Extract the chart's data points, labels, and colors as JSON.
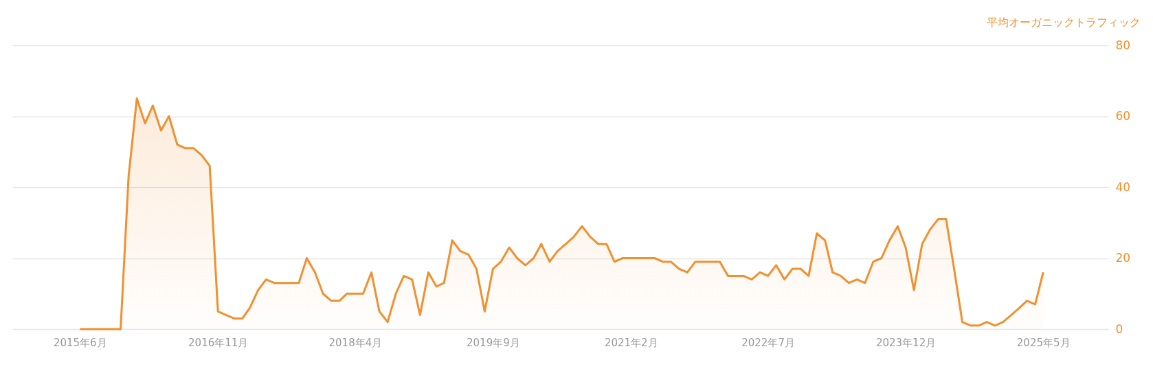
{
  "chart_data": {
    "type": "area",
    "ylabel": "平均オーガニックトラフィック",
    "x": [
      "2015-06",
      "2015-07",
      "2015-08",
      "2015-09",
      "2015-10",
      "2015-11",
      "2015-12",
      "2016-01",
      "2016-02",
      "2016-03",
      "2016-04",
      "2016-05",
      "2016-06",
      "2016-07",
      "2016-08",
      "2016-09",
      "2016-10",
      "2016-11",
      "2016-12",
      "2017-01",
      "2017-02",
      "2017-03",
      "2017-04",
      "2017-05",
      "2017-06",
      "2017-07",
      "2017-08",
      "2017-09",
      "2017-10",
      "2017-11",
      "2017-12",
      "2018-01",
      "2018-02",
      "2018-03",
      "2018-04",
      "2018-05",
      "2018-06",
      "2018-07",
      "2018-08",
      "2018-09",
      "2018-10",
      "2018-11",
      "2018-12",
      "2019-01",
      "2019-02",
      "2019-03",
      "2019-04",
      "2019-05",
      "2019-06",
      "2019-07",
      "2019-08",
      "2019-09",
      "2019-10",
      "2019-11",
      "2019-12",
      "2020-01",
      "2020-02",
      "2020-03",
      "2020-04",
      "2020-05",
      "2020-06",
      "2020-07",
      "2020-08",
      "2020-09",
      "2020-10",
      "2020-11",
      "2020-12",
      "2021-01",
      "2021-02",
      "2021-03",
      "2021-04",
      "2021-05",
      "2021-06",
      "2021-07",
      "2021-08",
      "2021-09",
      "2021-10",
      "2021-11",
      "2021-12",
      "2022-01",
      "2022-02",
      "2022-03",
      "2022-04",
      "2022-05",
      "2022-06",
      "2022-07",
      "2022-08",
      "2022-09",
      "2022-10",
      "2022-11",
      "2022-12",
      "2023-01",
      "2023-02",
      "2023-03",
      "2023-04",
      "2023-05",
      "2023-06",
      "2023-07",
      "2023-08",
      "2023-09",
      "2023-10",
      "2023-11",
      "2023-12",
      "2024-01",
      "2024-02",
      "2024-03",
      "2024-04",
      "2024-05",
      "2024-06",
      "2024-07",
      "2024-08",
      "2024-09",
      "2024-10",
      "2024-11",
      "2024-12",
      "2025-01",
      "2025-02",
      "2025-03",
      "2025-04",
      "2025-05"
    ],
    "series": [
      {
        "color": "#f0902f",
        "values": [
          0,
          0,
          0,
          0,
          0,
          0,
          43,
          65,
          58,
          63,
          56,
          60,
          52,
          51,
          51,
          49,
          46,
          5,
          4,
          3,
          3,
          6,
          11,
          14,
          13,
          13,
          13,
          13,
          20,
          16,
          10,
          8,
          8,
          10,
          10,
          10,
          16,
          5,
          2,
          10,
          15,
          14,
          4,
          16,
          12,
          13,
          25,
          22,
          21,
          17,
          5,
          17,
          19,
          23,
          20,
          18,
          20,
          24,
          19,
          22,
          24,
          26,
          29,
          26,
          24,
          24,
          19,
          20,
          20,
          20,
          20,
          20,
          19,
          19,
          17,
          16,
          19,
          19,
          19,
          19,
          15,
          15,
          15,
          14,
          16,
          15,
          18,
          14,
          17,
          17,
          15,
          27,
          25,
          16,
          15,
          13,
          14,
          13,
          19,
          20,
          25,
          29,
          23,
          11,
          24,
          28,
          31,
          31,
          16.5,
          2,
          1,
          1,
          2,
          1,
          2,
          4,
          6,
          8,
          7,
          16
        ]
      }
    ],
    "xlim": [
      "2014-09-20",
      "2026-01-01"
    ],
    "xticks": [
      {
        "value": "2015-06",
        "label": "2015年6月"
      },
      {
        "value": "2016-11",
        "label": "2016年11月"
      },
      {
        "value": "2018-04",
        "label": "2018年4月"
      },
      {
        "value": "2019-09",
        "label": "2019年9月"
      },
      {
        "value": "2021-02",
        "label": "2021年2月"
      },
      {
        "value": "2022-07",
        "label": "2022年7月"
      },
      {
        "value": "2023-12",
        "label": "2023年12月"
      },
      {
        "value": "2025-05",
        "label": "2025年5月"
      }
    ],
    "ylim": [
      0,
      80
    ],
    "yticks": [
      0,
      20,
      40,
      60,
      80
    ],
    "grid": "y"
  }
}
